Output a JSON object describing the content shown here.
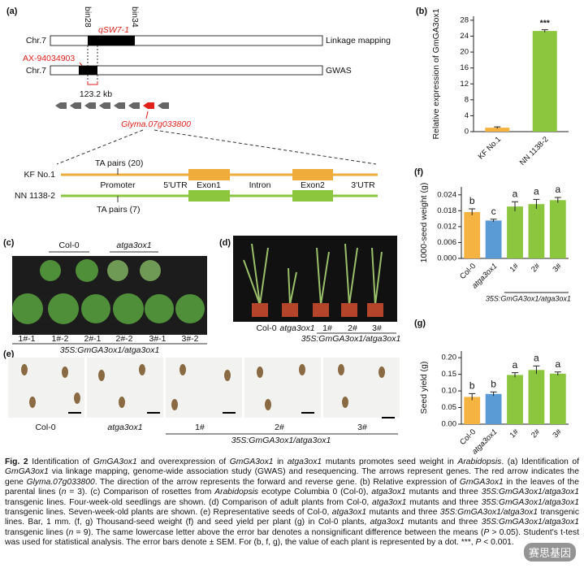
{
  "panel_a": {
    "label": "(a)",
    "bin_left": "bin28",
    "bin_right": "bin34",
    "qtl": "qSW7-1",
    "chr_top": "Chr.7",
    "track_top": "Linkage mapping",
    "marker": "AX-94034903",
    "chr_bottom": "Chr.7",
    "track_bottom": "GWAS",
    "distance": "123.2 kb",
    "gene": "Glyma.07g033800",
    "line1": "KF No.1",
    "ta1": "TA pairs (20)",
    "regions": [
      "Promoter",
      "5'UTR",
      "Exon1",
      "Intron",
      "Exon2",
      "3'UTR"
    ],
    "line2": "NN 1138-2",
    "ta2": "TA pairs (7)"
  },
  "panel_c": {
    "label": "(c)",
    "top_groups": [
      "Col-0",
      "atga3ox1"
    ],
    "plants": [
      "1#-1",
      "1#-2",
      "2#-1",
      "2#-2",
      "3#-1",
      "3#-2"
    ],
    "group": "35S:GmGA3ox1/atga3ox1"
  },
  "panel_d": {
    "label": "(d)",
    "plants": [
      "Col-0",
      "atga3ox1",
      "1#",
      "2#",
      "3#"
    ],
    "group": "35S:GmGA3ox1/atga3ox1"
  },
  "panel_e": {
    "label": "(e)",
    "seeds": [
      "Col-0",
      "atga3ox1",
      "1#",
      "2#",
      "3#"
    ],
    "group": "35S:GmGA3ox1/atga3ox1"
  },
  "chart_data": [
    {
      "type": "bar",
      "panel": "(b)",
      "y_label": "Relative expression of GmGA3ox1",
      "categories": [
        "KF No.1",
        "NN 1138-2"
      ],
      "values": [
        1.0,
        25.3
      ],
      "errors": [
        0.2,
        0.3
      ],
      "colors": [
        "#f5b342",
        "#8cc63f"
      ],
      "annotation": "***",
      "ylim": [
        0,
        29
      ],
      "yticks": [
        0,
        4,
        8,
        12,
        16,
        20,
        24,
        28
      ]
    },
    {
      "type": "bar",
      "panel": "(f)",
      "y_label": "1000-seed weight (g)",
      "categories": [
        "Col-0",
        "atga3ox1",
        "1#",
        "2#",
        "3#"
      ],
      "values": [
        0.0175,
        0.0143,
        0.0196,
        0.0205,
        0.022
      ],
      "errors": [
        0.0012,
        0.0005,
        0.0018,
        0.0018,
        0.001
      ],
      "letters": [
        "b",
        "c",
        "a",
        "a",
        "a"
      ],
      "colors": [
        "#f5b342",
        "#5b9bd5",
        "#8cc63f",
        "#8cc63f",
        "#8cc63f"
      ],
      "group_label": "35S:GmGA3ox1/atga3ox1",
      "ylim": [
        0,
        0.027
      ],
      "yticks": [
        {
          "value": 0,
          "label": "0.000"
        },
        {
          "value": 0.006,
          "label": "0.006"
        },
        {
          "value": 0.012,
          "label": "0.012"
        },
        {
          "value": 0.018,
          "label": "0.018"
        },
        {
          "value": 0.024,
          "label": "0.024"
        }
      ]
    },
    {
      "type": "bar",
      "panel": "(g)",
      "y_label": "Seed yield (g)",
      "categories": [
        "Col-0",
        "atga3ox1",
        "1#",
        "2#",
        "3#"
      ],
      "values": [
        0.082,
        0.091,
        0.148,
        0.163,
        0.152
      ],
      "errors": [
        0.01,
        0.006,
        0.007,
        0.012,
        0.005
      ],
      "letters": [
        "b",
        "b",
        "a",
        "a",
        "a"
      ],
      "colors": [
        "#f5b342",
        "#5b9bd5",
        "#8cc63f",
        "#8cc63f",
        "#8cc63f"
      ],
      "group_label": "35S:GmGA3ox1/atga3ox1",
      "ylim": [
        0,
        0.22
      ],
      "yticks": [
        {
          "value": 0,
          "label": "0.00"
        },
        {
          "value": 0.05,
          "label": "0.05"
        },
        {
          "value": 0.1,
          "label": "0.10"
        },
        {
          "value": 0.15,
          "label": "0.15"
        },
        {
          "value": 0.2,
          "label": "0.20"
        }
      ]
    }
  ],
  "caption": [
    {
      "text": "Fig. 2",
      "bold": true
    },
    {
      "text": " Identification of "
    },
    {
      "text": "GmGA3ox1",
      "italic": true
    },
    {
      "text": " and overexpression of "
    },
    {
      "text": "GmGA3ox1",
      "italic": true
    },
    {
      "text": " in "
    },
    {
      "text": "atga3ox1",
      "italic": true
    },
    {
      "text": " mutants promotes seed weight in "
    },
    {
      "text": "Arabidopsis",
      "italic": true
    },
    {
      "text": ". (a) Identification of "
    },
    {
      "text": "GmGA3ox1",
      "italic": true
    },
    {
      "text": " via linkage mapping, genome-wide association study (GWAS) and resequencing. The arrows represent genes. The red arrow indicates the gene "
    },
    {
      "text": "Glyma.07g033800",
      "italic": true
    },
    {
      "text": ". The direction of the arrow represents the forward and reverse gene. (b) Relative expression of "
    },
    {
      "text": "GmGA3ox1",
      "italic": true
    },
    {
      "text": " in the leaves of the parental lines ("
    },
    {
      "text": "n",
      "italic": true
    },
    {
      "text": " = 3). (c) Comparison of rosettes from "
    },
    {
      "text": "Arabidopsis",
      "italic": true
    },
    {
      "text": " ecotype Columbia 0 (Col-0), "
    },
    {
      "text": "atga3ox1",
      "italic": true
    },
    {
      "text": " mutants and three "
    },
    {
      "text": "35S:GmGA3ox1/atga3ox1",
      "italic": true
    },
    {
      "text": " transgenic lines. Four-week-old seedlings are shown. (d) Comparison of adult plants from Col-0, "
    },
    {
      "text": "atga3ox1",
      "italic": true
    },
    {
      "text": " mutants and three "
    },
    {
      "text": "35S:GmGA3ox1/atga3ox1",
      "italic": true
    },
    {
      "text": " transgenic lines. Seven-week-old plants are shown. (e) Representative seeds of Col-0, "
    },
    {
      "text": "atga3ox1",
      "italic": true
    },
    {
      "text": " mutants and three "
    },
    {
      "text": "35S:GmGA3ox1/atga3ox1",
      "italic": true
    },
    {
      "text": " transgenic lines. Bar, 1 mm. (f, g) Thousand-seed weight (f) and seed yield per plant (g) in Col-0 plants, "
    },
    {
      "text": "atga3ox1",
      "italic": true
    },
    {
      "text": " mutants and three "
    },
    {
      "text": "35S:GmGA3ox1/atga3ox1",
      "italic": true
    },
    {
      "text": " transgenic lines ("
    },
    {
      "text": "n",
      "italic": true
    },
    {
      "text": " = 9). The same lowercase letter above the error bar denotes a nonsignificant difference between the means ("
    },
    {
      "text": "P",
      "italic": true
    },
    {
      "text": " > 0.05). Student's t-test was used for statistical analysis. The error bars denote ± SEM. For (b, f, g), the value of each plant is represented by a dot. ***, "
    },
    {
      "text": "P",
      "italic": true
    },
    {
      "text": " < 0.001."
    }
  ],
  "watermark": "赛思基因"
}
